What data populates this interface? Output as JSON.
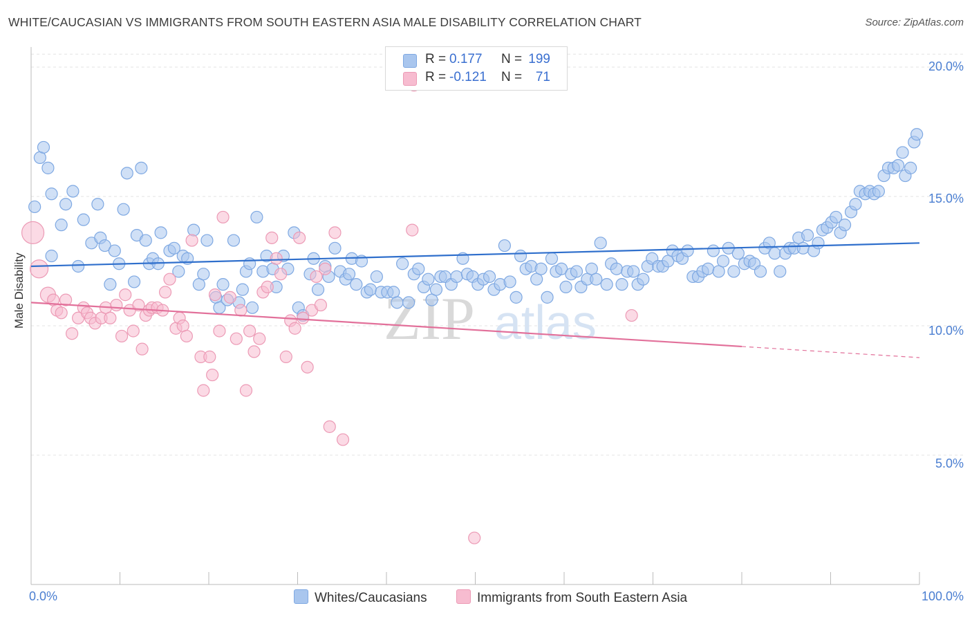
{
  "header": {
    "title": "WHITE/CAUCASIAN VS IMMIGRANTS FROM SOUTH EASTERN ASIA MALE DISABILITY CORRELATION CHART",
    "source": "Source: ZipAtlas.com"
  },
  "stats_box": {
    "rows": [
      {
        "r_label": "R =",
        "r_value": "0.177",
        "n_label": "N =",
        "n_value": "199"
      },
      {
        "r_label": "R =",
        "r_value": "-0.121",
        "n_label": "N =",
        "n_value": "71"
      }
    ]
  },
  "watermark": {
    "part1": "ZIP",
    "part2": "atlas"
  },
  "legend": {
    "items": [
      {
        "label": "Whites/Caucasians"
      },
      {
        "label": "Immigrants from South Eastern Asia"
      }
    ]
  },
  "colors": {
    "blue_fill": "#a9c6ee",
    "blue_stroke": "#7ea8e2",
    "blue_line": "#2f6fcc",
    "pink_fill": "#f7bcd0",
    "pink_stroke": "#ec9ab5",
    "pink_line": "#e2709a",
    "tick_label": "#4a7ed1",
    "grid": "#e3e3e3"
  },
  "chart_data": {
    "type": "scatter",
    "title": "WHITE/CAUCASIAN VS IMMIGRANTS FROM SOUTH EASTERN ASIA MALE DISABILITY CORRELATION CHART",
    "xlabel": "",
    "ylabel": "Male Disability",
    "xlim": [
      0,
      100
    ],
    "ylim": [
      0,
      21
    ],
    "x_tick_labels": [
      "0.0%",
      "100.0%"
    ],
    "y_ticks": [
      5,
      10,
      15,
      20
    ],
    "y_tick_labels": [
      "5.0%",
      "10.0%",
      "15.0%",
      "20.0%"
    ],
    "grid": true,
    "legend_position": "bottom-center",
    "series": [
      {
        "name": "Whites/Caucasians",
        "R": 0.177,
        "N": 199,
        "trend": {
          "x": [
            0,
            100
          ],
          "y": [
            12.3,
            13.2
          ]
        },
        "points": [
          [
            0.4,
            14.6
          ],
          [
            1,
            16.5
          ],
          [
            1.4,
            16.9
          ],
          [
            1.9,
            16.1
          ],
          [
            2.3,
            12.7
          ],
          [
            2.3,
            15.1
          ],
          [
            3.4,
            13.9
          ],
          [
            3.9,
            14.7
          ],
          [
            4.7,
            15.2
          ],
          [
            5.3,
            12.3
          ],
          [
            5.9,
            14.1
          ],
          [
            6.8,
            13.2
          ],
          [
            7.5,
            14.7
          ],
          [
            7.8,
            13.4
          ],
          [
            8.3,
            13.1
          ],
          [
            8.9,
            11.6
          ],
          [
            9.4,
            12.9
          ],
          [
            9.9,
            12.4
          ],
          [
            10.4,
            14.5
          ],
          [
            10.8,
            15.9
          ],
          [
            11.6,
            11.7
          ],
          [
            11.9,
            13.5
          ],
          [
            12.4,
            16.1
          ],
          [
            12.9,
            13.3
          ],
          [
            13.3,
            12.4
          ],
          [
            13.7,
            12.6
          ],
          [
            14.3,
            12.4
          ],
          [
            14.6,
            13.6
          ],
          [
            15.6,
            12.9
          ],
          [
            16.1,
            13.0
          ],
          [
            16.6,
            12.1
          ],
          [
            17.1,
            12.7
          ],
          [
            17.6,
            12.6
          ],
          [
            18.3,
            13.7
          ],
          [
            18.9,
            11.6
          ],
          [
            19.4,
            12.0
          ],
          [
            19.8,
            13.3
          ],
          [
            20.8,
            11.1
          ],
          [
            21.2,
            10.7
          ],
          [
            21.6,
            11.6
          ],
          [
            22.1,
            11.0
          ],
          [
            22.8,
            13.3
          ],
          [
            23.4,
            10.9
          ],
          [
            23.8,
            11.4
          ],
          [
            24.2,
            12.1
          ],
          [
            24.6,
            12.4
          ],
          [
            24.9,
            10.7
          ],
          [
            25.4,
            14.2
          ],
          [
            26.1,
            12.1
          ],
          [
            26.5,
            12.7
          ],
          [
            27.2,
            12.2
          ],
          [
            27.6,
            11.5
          ],
          [
            28.4,
            12.7
          ],
          [
            28.9,
            12.2
          ],
          [
            29.6,
            13.6
          ],
          [
            30.1,
            10.7
          ],
          [
            30.6,
            10.4
          ],
          [
            31.4,
            12.0
          ],
          [
            31.8,
            12.6
          ],
          [
            32.3,
            11.4
          ],
          [
            33.1,
            12.3
          ],
          [
            33.5,
            11.9
          ],
          [
            34.2,
            13.0
          ],
          [
            34.8,
            12.1
          ],
          [
            35.4,
            11.8
          ],
          [
            35.8,
            12.0
          ],
          [
            36.1,
            12.6
          ],
          [
            36.6,
            11.6
          ],
          [
            37.2,
            12.5
          ],
          [
            37.8,
            11.3
          ],
          [
            38.2,
            11.4
          ],
          [
            38.9,
            11.9
          ],
          [
            39.4,
            11.3
          ],
          [
            40.1,
            11.3
          ],
          [
            40.8,
            11.3
          ],
          [
            41.2,
            10.9
          ],
          [
            41.8,
            12.4
          ],
          [
            42.5,
            10.9
          ],
          [
            43.1,
            12.0
          ],
          [
            43.6,
            12.2
          ],
          [
            44.2,
            11.5
          ],
          [
            44.7,
            11.8
          ],
          [
            45.1,
            11.0
          ],
          [
            45.6,
            11.4
          ],
          [
            46.1,
            11.9
          ],
          [
            46.6,
            11.9
          ],
          [
            47.3,
            11.6
          ],
          [
            47.9,
            11.9
          ],
          [
            48.6,
            12.6
          ],
          [
            49.1,
            12.0
          ],
          [
            49.7,
            11.9
          ],
          [
            50.3,
            11.6
          ],
          [
            50.9,
            11.8
          ],
          [
            51.6,
            11.9
          ],
          [
            52.1,
            11.4
          ],
          [
            52.8,
            11.6
          ],
          [
            53.3,
            13.1
          ],
          [
            53.9,
            11.7
          ],
          [
            54.6,
            11.1
          ],
          [
            55.1,
            12.7
          ],
          [
            55.7,
            12.2
          ],
          [
            56.3,
            12.3
          ],
          [
            56.9,
            11.8
          ],
          [
            57.4,
            12.2
          ],
          [
            58.1,
            11.1
          ],
          [
            58.6,
            12.6
          ],
          [
            59.1,
            12.1
          ],
          [
            59.7,
            12.2
          ],
          [
            60.2,
            11.5
          ],
          [
            60.8,
            12.0
          ],
          [
            61.4,
            12.1
          ],
          [
            61.9,
            11.5
          ],
          [
            62.6,
            11.8
          ],
          [
            63.1,
            12.2
          ],
          [
            63.6,
            11.8
          ],
          [
            64.1,
            13.2
          ],
          [
            64.8,
            11.6
          ],
          [
            65.3,
            12.4
          ],
          [
            65.9,
            12.2
          ],
          [
            66.5,
            11.6
          ],
          [
            67.1,
            12.1
          ],
          [
            67.8,
            12.1
          ],
          [
            68.3,
            11.6
          ],
          [
            68.9,
            11.8
          ],
          [
            69.4,
            12.3
          ],
          [
            69.9,
            12.6
          ],
          [
            70.6,
            12.3
          ],
          [
            71.1,
            12.3
          ],
          [
            71.7,
            12.5
          ],
          [
            72.2,
            12.9
          ],
          [
            72.8,
            12.7
          ],
          [
            73.3,
            12.6
          ],
          [
            73.9,
            12.9
          ],
          [
            74.5,
            11.9
          ],
          [
            75.1,
            11.9
          ],
          [
            75.6,
            12.1
          ],
          [
            76.2,
            12.2
          ],
          [
            76.8,
            12.9
          ],
          [
            77.4,
            12.1
          ],
          [
            77.9,
            12.5
          ],
          [
            78.5,
            13.0
          ],
          [
            79.1,
            12.1
          ],
          [
            79.6,
            12.8
          ],
          [
            80.3,
            12.4
          ],
          [
            80.9,
            12.5
          ],
          [
            81.4,
            12.4
          ],
          [
            82.1,
            12.1
          ],
          [
            82.6,
            13.0
          ],
          [
            83.1,
            13.2
          ],
          [
            83.7,
            12.8
          ],
          [
            84.3,
            12.1
          ],
          [
            84.9,
            12.8
          ],
          [
            85.4,
            13.0
          ],
          [
            85.9,
            13.0
          ],
          [
            86.4,
            13.4
          ],
          [
            86.9,
            13.0
          ],
          [
            87.4,
            13.5
          ],
          [
            88.1,
            12.9
          ],
          [
            88.6,
            13.2
          ],
          [
            89.1,
            13.7
          ],
          [
            89.6,
            13.8
          ],
          [
            90.1,
            14.0
          ],
          [
            90.6,
            14.2
          ],
          [
            91.1,
            13.6
          ],
          [
            91.6,
            13.9
          ],
          [
            92.3,
            14.4
          ],
          [
            92.8,
            14.7
          ],
          [
            93.3,
            15.2
          ],
          [
            93.9,
            15.1
          ],
          [
            94.4,
            15.2
          ],
          [
            94.9,
            15.1
          ],
          [
            95.4,
            15.2
          ],
          [
            96.0,
            15.8
          ],
          [
            96.5,
            16.1
          ],
          [
            97.1,
            16.1
          ],
          [
            97.6,
            16.2
          ],
          [
            98.1,
            16.7
          ],
          [
            98.4,
            15.8
          ],
          [
            99.0,
            16.1
          ],
          [
            99.4,
            17.1
          ],
          [
            99.7,
            17.4
          ]
        ]
      },
      {
        "name": "Immigrants from South Eastern Asia",
        "R": -0.121,
        "N": 71,
        "trend_solid": {
          "x": [
            0,
            80
          ],
          "y": [
            10.9,
            9.2
          ]
        },
        "trend_dashed": {
          "x": [
            80,
            100
          ],
          "y": [
            9.2,
            8.77
          ]
        },
        "points": [
          [
            0.2,
            13.6
          ],
          [
            0.9,
            12.2
          ],
          [
            1.9,
            11.2
          ],
          [
            2.5,
            11.0
          ],
          [
            2.9,
            10.6
          ],
          [
            3.4,
            10.5
          ],
          [
            3.9,
            11.0
          ],
          [
            4.6,
            9.7
          ],
          [
            5.3,
            10.3
          ],
          [
            5.9,
            10.7
          ],
          [
            6.3,
            10.5
          ],
          [
            6.7,
            10.3
          ],
          [
            7.2,
            10.1
          ],
          [
            7.9,
            10.3
          ],
          [
            8.4,
            10.7
          ],
          [
            8.9,
            10.3
          ],
          [
            9.6,
            10.8
          ],
          [
            10.2,
            9.6
          ],
          [
            10.6,
            11.2
          ],
          [
            11.1,
            10.6
          ],
          [
            11.5,
            9.8
          ],
          [
            12.1,
            10.8
          ],
          [
            12.5,
            9.1
          ],
          [
            12.9,
            10.4
          ],
          [
            13.3,
            10.6
          ],
          [
            13.6,
            10.7
          ],
          [
            14.2,
            10.7
          ],
          [
            14.8,
            10.6
          ],
          [
            15.1,
            11.3
          ],
          [
            15.6,
            11.8
          ],
          [
            16.3,
            9.9
          ],
          [
            16.7,
            10.3
          ],
          [
            17.1,
            10.0
          ],
          [
            17.5,
            9.6
          ],
          [
            18.1,
            13.3
          ],
          [
            19.1,
            8.8
          ],
          [
            19.4,
            7.5
          ],
          [
            20.1,
            8.8
          ],
          [
            20.4,
            8.1
          ],
          [
            20.7,
            11.2
          ],
          [
            21.2,
            9.8
          ],
          [
            21.6,
            14.2
          ],
          [
            22.4,
            11.1
          ],
          [
            23.1,
            9.5
          ],
          [
            23.6,
            10.6
          ],
          [
            24.2,
            7.5
          ],
          [
            24.6,
            9.8
          ],
          [
            25.1,
            9.0
          ],
          [
            25.7,
            9.5
          ],
          [
            26.1,
            11.3
          ],
          [
            26.6,
            11.5
          ],
          [
            27.1,
            13.4
          ],
          [
            27.6,
            12.6
          ],
          [
            28.1,
            12.0
          ],
          [
            28.7,
            8.8
          ],
          [
            29.2,
            10.2
          ],
          [
            29.7,
            9.9
          ],
          [
            30.2,
            13.4
          ],
          [
            30.6,
            10.3
          ],
          [
            31.1,
            8.4
          ],
          [
            31.6,
            10.6
          ],
          [
            32.1,
            11.9
          ],
          [
            32.6,
            10.8
          ],
          [
            33.1,
            12.2
          ],
          [
            33.6,
            6.1
          ],
          [
            34.2,
            13.6
          ],
          [
            35.1,
            5.6
          ],
          [
            42.9,
            13.7
          ],
          [
            43.1,
            19.3
          ],
          [
            49.9,
            1.8
          ],
          [
            67.6,
            10.4
          ]
        ]
      }
    ]
  }
}
